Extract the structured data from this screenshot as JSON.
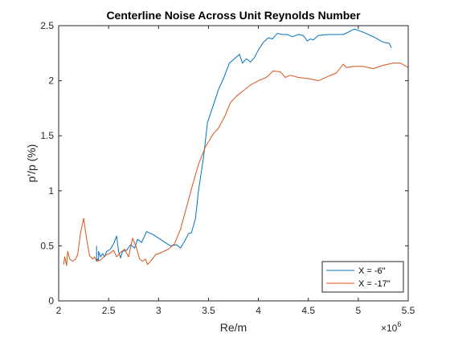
{
  "chart_data": {
    "type": "line",
    "title": "Centerline Noise Across Unit Reynolds Number",
    "xlabel": "Re/m",
    "ylabel": "p'/p (%)",
    "x_multiplier": {
      "base": "×10",
      "exponent": "6"
    },
    "xlim": [
      2,
      5.5
    ],
    "ylim": [
      0,
      2.5
    ],
    "xticks": [
      2,
      2.5,
      3,
      3.5,
      4,
      4.5,
      5,
      5.5
    ],
    "xtick_labels": [
      "2",
      "2.5",
      "3",
      "3.5",
      "4",
      "4.5",
      "5",
      "5.5"
    ],
    "yticks": [
      0,
      0.5,
      1,
      1.5,
      2,
      2.5
    ],
    "ytick_labels": [
      "0",
      "0.5",
      "1",
      "1.5",
      "2",
      "2.5"
    ],
    "grid": false,
    "legend_position": "bottom-right",
    "series": [
      {
        "name": "X = -6\"",
        "color": "#0072BD",
        "points": [
          [
            2.38,
            0.5
          ],
          [
            2.38,
            0.36
          ],
          [
            2.39,
            0.38
          ],
          [
            2.4,
            0.37
          ],
          [
            2.4,
            0.45
          ],
          [
            2.42,
            0.4
          ],
          [
            2.44,
            0.43
          ],
          [
            2.46,
            0.4
          ],
          [
            2.48,
            0.45
          ],
          [
            2.52,
            0.47
          ],
          [
            2.55,
            0.52
          ],
          [
            2.58,
            0.59
          ],
          [
            2.6,
            0.45
          ],
          [
            2.62,
            0.39
          ],
          [
            2.64,
            0.45
          ],
          [
            2.68,
            0.46
          ],
          [
            2.72,
            0.51
          ],
          [
            2.76,
            0.48
          ],
          [
            2.79,
            0.56
          ],
          [
            2.83,
            0.53
          ],
          [
            2.88,
            0.63
          ],
          [
            2.95,
            0.6
          ],
          [
            3.05,
            0.54
          ],
          [
            3.12,
            0.5
          ],
          [
            3.18,
            0.51
          ],
          [
            3.22,
            0.48
          ],
          [
            3.26,
            0.54
          ],
          [
            3.3,
            0.61
          ],
          [
            3.33,
            0.62
          ],
          [
            3.37,
            0.75
          ],
          [
            3.4,
            1.0
          ],
          [
            3.45,
            1.3
          ],
          [
            3.49,
            1.62
          ],
          [
            3.55,
            1.78
          ],
          [
            3.6,
            1.92
          ],
          [
            3.65,
            2.02
          ],
          [
            3.71,
            2.16
          ],
          [
            3.76,
            2.2
          ],
          [
            3.81,
            2.24
          ],
          [
            3.84,
            2.16
          ],
          [
            3.88,
            2.2
          ],
          [
            3.92,
            2.17
          ],
          [
            3.96,
            2.21
          ],
          [
            4.0,
            2.28
          ],
          [
            4.05,
            2.35
          ],
          [
            4.1,
            2.39
          ],
          [
            4.14,
            2.38
          ],
          [
            4.19,
            2.43
          ],
          [
            4.24,
            2.42
          ],
          [
            4.29,
            2.42
          ],
          [
            4.34,
            2.4
          ],
          [
            4.4,
            2.42
          ],
          [
            4.45,
            2.41
          ],
          [
            4.49,
            2.36
          ],
          [
            4.52,
            2.38
          ],
          [
            4.55,
            2.37
          ],
          [
            4.6,
            2.41
          ],
          [
            4.7,
            2.42
          ],
          [
            4.85,
            2.42
          ],
          [
            4.92,
            2.45
          ],
          [
            4.96,
            2.47
          ],
          [
            5.05,
            2.44
          ],
          [
            5.15,
            2.4
          ],
          [
            5.25,
            2.35
          ],
          [
            5.31,
            2.34
          ],
          [
            5.33,
            2.3
          ]
        ]
      },
      {
        "name": "X = -17\"",
        "color": "#D95319",
        "points": [
          [
            2.05,
            0.33
          ],
          [
            2.06,
            0.4
          ],
          [
            2.08,
            0.32
          ],
          [
            2.09,
            0.45
          ],
          [
            2.11,
            0.38
          ],
          [
            2.14,
            0.36
          ],
          [
            2.17,
            0.38
          ],
          [
            2.19,
            0.42
          ],
          [
            2.22,
            0.62
          ],
          [
            2.25,
            0.75
          ],
          [
            2.28,
            0.56
          ],
          [
            2.31,
            0.41
          ],
          [
            2.34,
            0.38
          ],
          [
            2.36,
            0.4
          ],
          [
            2.38,
            0.36
          ],
          [
            2.42,
            0.37
          ],
          [
            2.45,
            0.4
          ],
          [
            2.48,
            0.42
          ],
          [
            2.51,
            0.43
          ],
          [
            2.55,
            0.46
          ],
          [
            2.58,
            0.4
          ],
          [
            2.62,
            0.44
          ],
          [
            2.66,
            0.47
          ],
          [
            2.7,
            0.4
          ],
          [
            2.74,
            0.57
          ],
          [
            2.78,
            0.48
          ],
          [
            2.81,
            0.38
          ],
          [
            2.84,
            0.36
          ],
          [
            2.87,
            0.38
          ],
          [
            2.89,
            0.33
          ],
          [
            2.93,
            0.37
          ],
          [
            2.97,
            0.42
          ],
          [
            3.03,
            0.44
          ],
          [
            3.1,
            0.47
          ],
          [
            3.16,
            0.52
          ],
          [
            3.22,
            0.65
          ],
          [
            3.28,
            0.85
          ],
          [
            3.34,
            1.05
          ],
          [
            3.4,
            1.24
          ],
          [
            3.47,
            1.4
          ],
          [
            3.55,
            1.52
          ],
          [
            3.6,
            1.57
          ],
          [
            3.66,
            1.67
          ],
          [
            3.72,
            1.8
          ],
          [
            3.78,
            1.86
          ],
          [
            3.85,
            1.91
          ],
          [
            3.92,
            1.96
          ],
          [
            4.0,
            2.0
          ],
          [
            4.08,
            2.03
          ],
          [
            4.15,
            2.09
          ],
          [
            4.22,
            2.08
          ],
          [
            4.27,
            2.03
          ],
          [
            4.32,
            2.05
          ],
          [
            4.4,
            2.03
          ],
          [
            4.5,
            2.02
          ],
          [
            4.6,
            2.0
          ],
          [
            4.7,
            2.04
          ],
          [
            4.78,
            2.07
          ],
          [
            4.85,
            2.15
          ],
          [
            4.88,
            2.12
          ],
          [
            4.95,
            2.13
          ],
          [
            5.05,
            2.13
          ],
          [
            5.15,
            2.11
          ],
          [
            5.25,
            2.14
          ],
          [
            5.35,
            2.16
          ],
          [
            5.42,
            2.16
          ],
          [
            5.5,
            2.12
          ]
        ]
      }
    ]
  }
}
